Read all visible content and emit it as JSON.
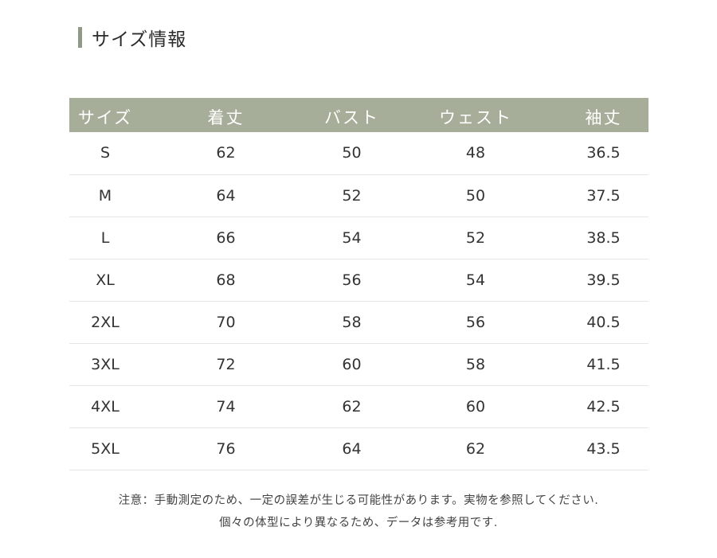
{
  "title": "サイズ情報",
  "table": {
    "headers": [
      "サイズ",
      "着丈",
      "バスト",
      "ウェスト",
      "袖丈"
    ],
    "rows": [
      [
        "S",
        "62",
        "50",
        "48",
        "36.5"
      ],
      [
        "M",
        "64",
        "52",
        "50",
        "37.5"
      ],
      [
        "L",
        "66",
        "54",
        "52",
        "38.5"
      ],
      [
        "XL",
        "68",
        "56",
        "54",
        "39.5"
      ],
      [
        "2XL",
        "70",
        "58",
        "56",
        "40.5"
      ],
      [
        "3XL",
        "72",
        "60",
        "58",
        "41.5"
      ],
      [
        "4XL",
        "74",
        "62",
        "60",
        "42.5"
      ],
      [
        "5XL",
        "76",
        "64",
        "62",
        "43.5"
      ]
    ]
  },
  "notes": [
    "注意：手動測定のため、一定の誤差が生じる可能性があります。実物を参照してください.",
    "個々の体型により異なるため、データは参考用です."
  ],
  "colors": {
    "accent": "#a6ad98",
    "title_bar": "#8e9a86"
  }
}
